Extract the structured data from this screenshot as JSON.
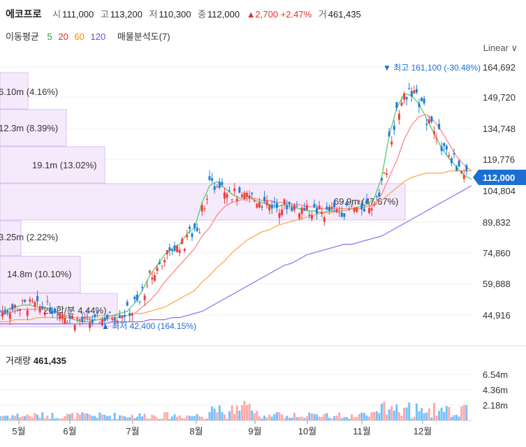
{
  "header": {
    "name": "에코프로",
    "open_label": "시",
    "open": "111,000",
    "high_label": "고",
    "high": "113,200",
    "low_label": "저",
    "low": "110,300",
    "close_label": "종",
    "close": "112,000",
    "change": "▲2,700 +2.47%",
    "volume_label": "거",
    "volume": "461,435"
  },
  "moving_averages": {
    "title": "이동평균",
    "items": [
      {
        "label": "5",
        "color": "#2f9e44"
      },
      {
        "label": "20",
        "color": "#e03131"
      },
      {
        "label": "60",
        "color": "#f08c00"
      },
      {
        "label": "120",
        "color": "#7048e8"
      }
    ],
    "profile_label": "매물분석도(7)"
  },
  "scale_button": "Linear ∨",
  "chart_data": {
    "type": "candlestick",
    "price_axis_ticks": [
      "164,692",
      "149,720",
      "134,748",
      "119,776",
      "104,804",
      "89,832",
      "74,860",
      "59,888",
      "44,916"
    ],
    "current_price_label": "112,000",
    "x_tick_labels": [
      "5월",
      "6월",
      "7월",
      "8월",
      "9월",
      "10월",
      "11월",
      "12월"
    ],
    "high_annotation": "▼ 최고 161,100 (-30.48%)",
    "low_annotation": "▲ 최저 42,400 (164.15%)",
    "volume_profile": [
      {
        "text": "6.10m (4.16%)"
      },
      {
        "text": "12.3m (8.39%)"
      },
      {
        "text": "19.1m (13.02%)"
      },
      {
        "text": "69.9m (47.67%)"
      },
      {
        "text": "3.25m (2.22%)"
      },
      {
        "text": "14.8m (10.10%)"
      },
      {
        "text": "21.합/분 4.44%)"
      }
    ],
    "volume_title": "거래량",
    "volume_value": "461,435",
    "volume_axis_ticks": [
      "6.54m",
      "4.36m",
      "2.18m"
    ],
    "ma_series": [
      {
        "name": "5",
        "values": [
          48,
          49,
          50,
          51,
          51,
          50,
          50,
          49,
          47,
          45,
          44,
          43,
          43,
          44,
          45,
          46,
          47,
          48,
          52,
          58,
          65,
          70,
          75,
          78,
          80,
          85,
          88,
          100,
          108,
          110,
          107,
          104,
          102,
          103,
          101,
          100,
          99,
          98,
          99,
          98,
          97,
          96,
          96,
          95,
          96,
          96,
          96,
          97,
          98,
          99,
          102,
          112,
          132,
          145,
          152,
          151,
          147,
          140,
          133,
          126,
          121,
          117,
          113,
          111
        ]
      },
      {
        "name": "20",
        "values": [
          46,
          47,
          48,
          49,
          49,
          49,
          49,
          48,
          47,
          46,
          45,
          45,
          44,
          44,
          44,
          45,
          45,
          46,
          47,
          50,
          53,
          57,
          62,
          66,
          70,
          74,
          78,
          84,
          88,
          94,
          98,
          100,
          101,
          102,
          102,
          101,
          101,
          100,
          100,
          99,
          99,
          98,
          98,
          97,
          97,
          97,
          97,
          97,
          97,
          98,
          99,
          104,
          112,
          120,
          130,
          137,
          141,
          142,
          139,
          134,
          128,
          122,
          118,
          115
        ]
      },
      {
        "name": "60",
        "values": [
          43,
          43,
          44,
          44,
          44,
          45,
          45,
          45,
          45,
          45,
          45,
          45,
          45,
          46,
          46,
          46,
          46,
          46,
          47,
          47,
          48,
          49,
          50,
          52,
          54,
          56,
          58,
          62,
          65,
          69,
          72,
          76,
          79,
          82,
          84,
          86,
          87,
          89,
          90,
          91,
          92,
          93,
          94,
          95,
          95,
          96,
          96,
          97,
          97,
          98,
          99,
          101,
          104,
          107,
          110,
          112,
          113,
          114,
          114,
          114,
          115,
          115,
          115,
          115
        ]
      },
      {
        "name": "120",
        "values": [
          42,
          42,
          42,
          42,
          42,
          42,
          42,
          42,
          42,
          42,
          42,
          42,
          42,
          42,
          42,
          43,
          43,
          43,
          43,
          43,
          44,
          44,
          44,
          45,
          45,
          46,
          47,
          48,
          50,
          52,
          54,
          56,
          58,
          60,
          62,
          64,
          66,
          68,
          70,
          71,
          73,
          75,
          76,
          77,
          78,
          79,
          80,
          80,
          81,
          82,
          83,
          84,
          86,
          88,
          90,
          92,
          94,
          96,
          98,
          100,
          102,
          104,
          106,
          108
        ]
      }
    ]
  }
}
